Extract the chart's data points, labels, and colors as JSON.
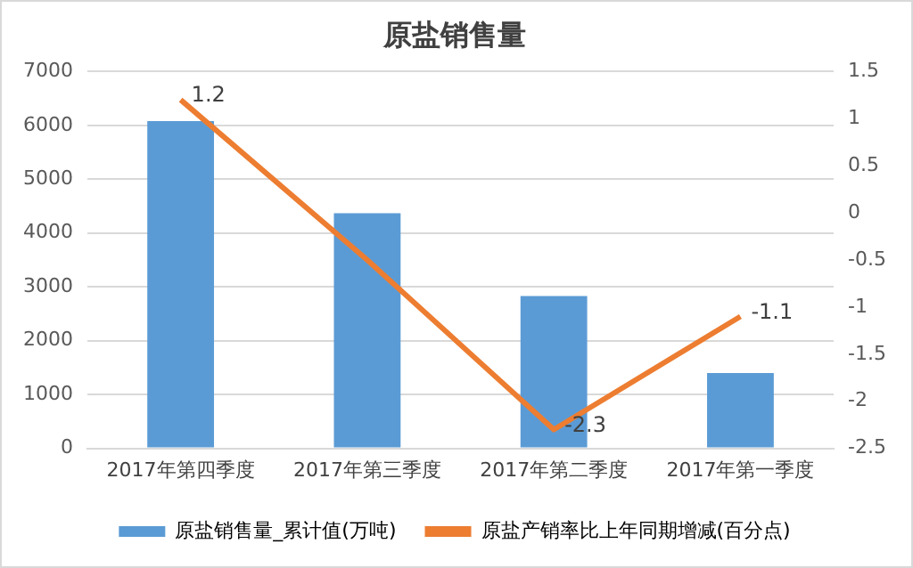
{
  "chart_data": {
    "type": "bar",
    "title": "原盐销售量",
    "categories": [
      "2017年第四季度",
      "2017年第三季度",
      "2017年第二季度",
      "2017年第一季度"
    ],
    "series": [
      {
        "name": "原盐销售量_累计值(万吨)",
        "color": "#5b9bd5",
        "values": [
          6080,
          4370,
          2830,
          1400
        ]
      },
      {
        "name": "原盐产销率比上年同期增减(百分点)",
        "type": "line",
        "axis": "y2",
        "color": "#ed7d31",
        "values": [
          1.2,
          -0.5,
          -2.3,
          -1.1
        ],
        "value_labels": [
          "1.2",
          null,
          "-2.3",
          "-1.1"
        ]
      }
    ],
    "ylim": [
      0,
      7000
    ],
    "yticks": [
      0,
      1000,
      2000,
      3000,
      4000,
      5000,
      6000,
      7000
    ],
    "y2lim": [
      -2.5,
      1.5
    ],
    "y2ticks": [
      -2.5,
      -2,
      -1.5,
      -1,
      -0.5,
      0,
      0.5,
      1,
      1.5
    ],
    "grid": "y",
    "legend": "bottom",
    "marker": "none"
  }
}
